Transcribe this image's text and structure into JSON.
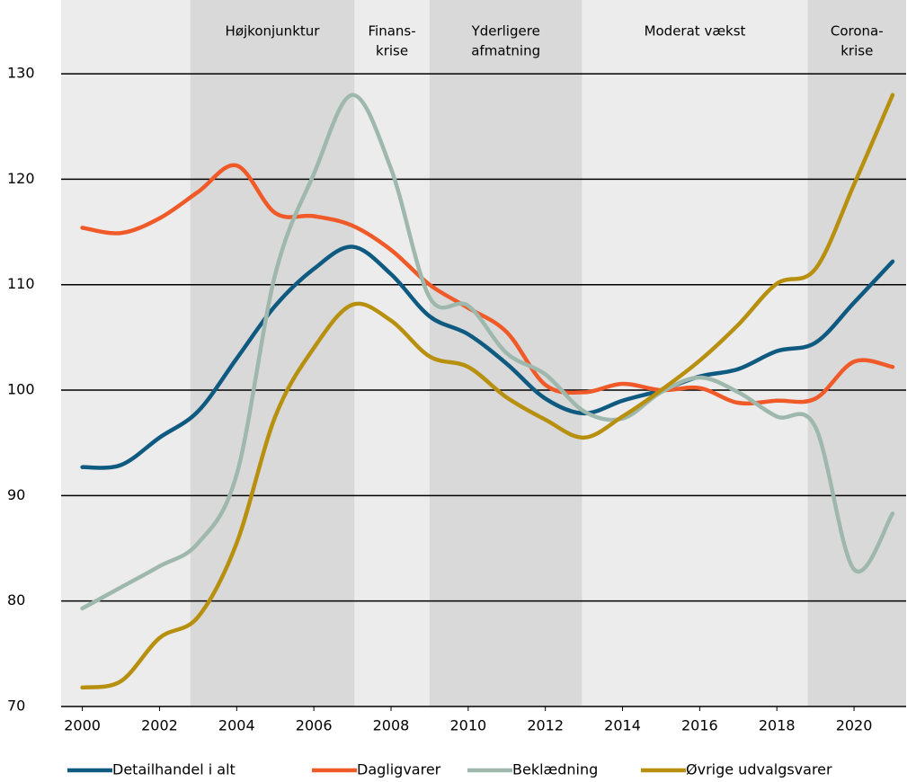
{
  "chart_data": {
    "type": "line",
    "x": [
      2000,
      2001,
      2002,
      2003,
      2004,
      2005,
      2006,
      2007,
      2008,
      2009,
      2010,
      2011,
      2012,
      2013,
      2014,
      2015,
      2016,
      2017,
      2018,
      2019,
      2020,
      2021
    ],
    "series": [
      {
        "name": "Detailhandel i alt",
        "color": "#0f5a80",
        "values": [
          92.7,
          92.9,
          95.5,
          98.0,
          103.0,
          108.0,
          111.5,
          113.6,
          111.0,
          107.0,
          105.3,
          102.5,
          99.2,
          97.8,
          99.0,
          100.0,
          101.3,
          102.0,
          103.7,
          104.5,
          108.3,
          112.2
        ]
      },
      {
        "name": "Dagligvarer",
        "color": "#f05a28",
        "values": [
          115.4,
          114.9,
          116.3,
          118.8,
          121.3,
          116.8,
          116.5,
          115.6,
          113.3,
          110.0,
          107.8,
          105.5,
          100.5,
          99.8,
          100.6,
          100.0,
          100.2,
          98.8,
          99.0,
          99.2,
          102.7,
          102.2
        ]
      },
      {
        "name": "Beklædning",
        "color": "#9fb8ad",
        "values": [
          79.3,
          81.3,
          83.3,
          85.5,
          92.0,
          111.0,
          120.5,
          128.0,
          121.0,
          108.8,
          108.0,
          103.5,
          101.5,
          98.0,
          97.3,
          99.8,
          101.2,
          99.8,
          97.5,
          96.5,
          83.0,
          88.3
        ]
      },
      {
        "name": "Øvrige udvalgsvarer",
        "color": "#b8900f",
        "values": [
          71.8,
          72.4,
          76.5,
          78.5,
          85.5,
          97.5,
          104.0,
          108.1,
          106.6,
          103.2,
          102.2,
          99.3,
          97.2,
          95.5,
          97.5,
          100.0,
          102.8,
          106.2,
          110.1,
          111.5,
          119.5,
          128.0
        ]
      }
    ],
    "periods": [
      {
        "label": [
          "Højkonjunktur"
        ],
        "start": 2002.8,
        "end": 2007.05,
        "shaded": true
      },
      {
        "label": [
          "Finans-",
          "krise"
        ],
        "start": 2007.05,
        "end": 2009.0,
        "shaded": false
      },
      {
        "label": [
          "Yderligere",
          "afmatning"
        ],
        "start": 2009.0,
        "end": 2012.95,
        "shaded": true
      },
      {
        "label": [
          "Moderat vækst"
        ],
        "start": 2012.95,
        "end": 2018.8,
        "shaded": false
      },
      {
        "label": [
          "Corona-",
          "krise"
        ],
        "start": 2018.8,
        "end": 2021.35,
        "shaded": true
      }
    ],
    "xlim": [
      1999.45,
      2021.35
    ],
    "xticks": [
      2000,
      2002,
      2004,
      2006,
      2008,
      2010,
      2012,
      2014,
      2016,
      2018,
      2020
    ],
    "ylim": [
      70,
      137
    ],
    "yticks": [
      70,
      80,
      90,
      100,
      110,
      120,
      130
    ],
    "grid": true,
    "legend": "bottom"
  }
}
